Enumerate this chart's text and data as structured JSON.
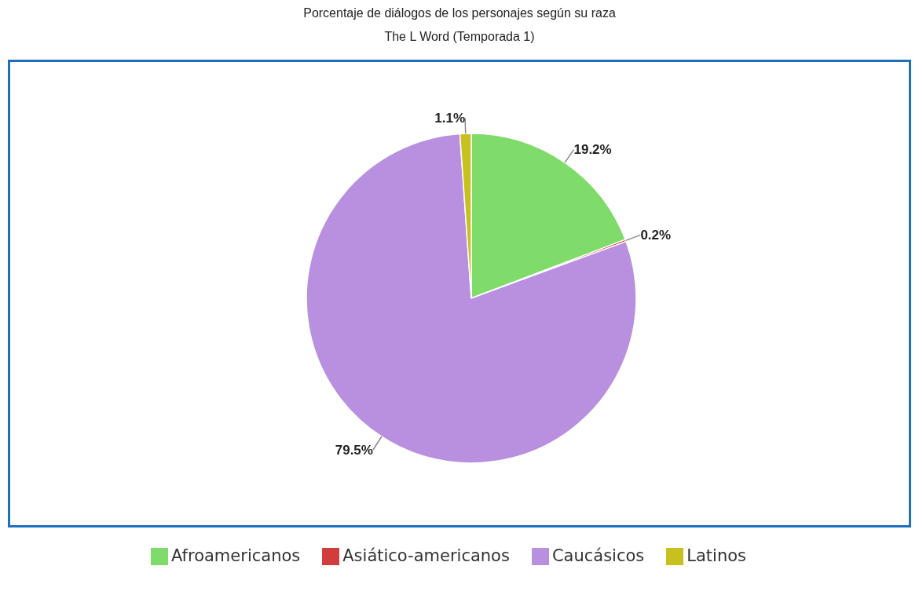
{
  "chart_data": {
    "type": "pie",
    "title": "Porcentaje de diálogos de los personajes según su raza",
    "subtitle": "The L Word (Temporada 1)",
    "categories": [
      "Afroamericanos",
      "Asiático-americanos",
      "Caucásicos",
      "Latinos"
    ],
    "values": [
      19.2,
      0.2,
      79.5,
      1.1
    ],
    "colors": [
      "#7fdc6a",
      "#d23c3c",
      "#b98fe0",
      "#c8c01e"
    ],
    "value_labels": [
      "19.2%",
      "0.2%",
      "79.5%",
      "1.1%"
    ],
    "legend": "bottom"
  }
}
